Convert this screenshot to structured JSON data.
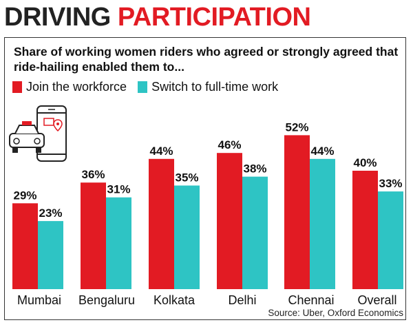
{
  "header": {
    "title_dark": "DRIVING",
    "title_red": "PARTICIPATION"
  },
  "icon": "ride-hailing-phone-car-icon",
  "colors": {
    "join": "#e21b23",
    "switch": "#2ec4c4",
    "title_red": "#e21b23"
  },
  "chart_data": {
    "type": "bar",
    "title": "Share of working women riders who agreed or strongly agreed that ride-hailing enabled them to...",
    "categories": [
      "Mumbai",
      "Bengaluru",
      "Kolkata",
      "Delhi",
      "Chennai",
      "Overall"
    ],
    "series": [
      {
        "name": "Join the workforce",
        "values": [
          29,
          36,
          44,
          46,
          52,
          40
        ],
        "labels": [
          "29%",
          "36%",
          "44%",
          "46%",
          "52%",
          "40%"
        ]
      },
      {
        "name": "Switch to full-time work",
        "values": [
          23,
          31,
          35,
          38,
          44,
          33
        ],
        "labels": [
          "23%",
          "31%",
          "35%",
          "38%",
          "44%",
          "33%"
        ]
      }
    ],
    "xlabel": "",
    "ylabel": "",
    "ylim": [
      0,
      60
    ],
    "grid": false,
    "legend": "top-left",
    "source": "Source: Uber, Oxford Economics"
  }
}
